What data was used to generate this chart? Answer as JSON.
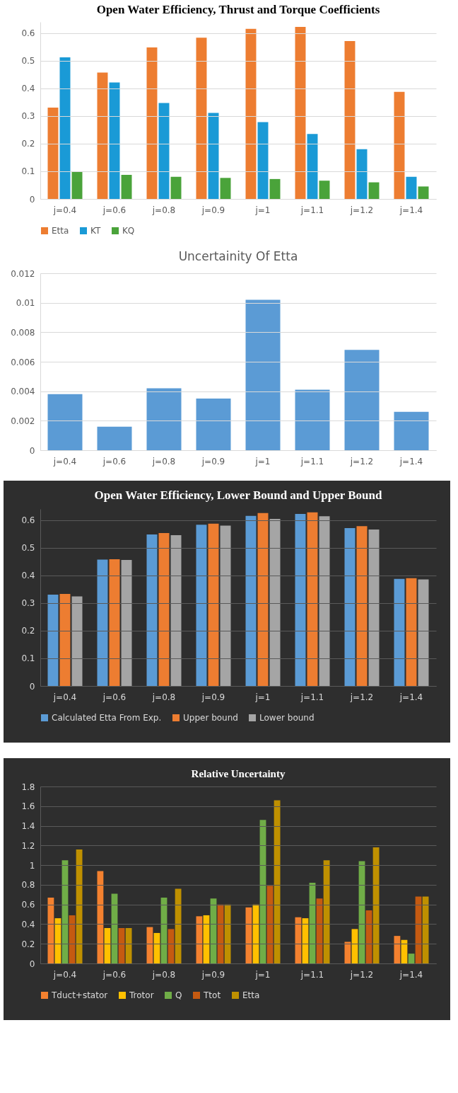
{
  "chart_data": [
    {
      "type": "bar",
      "title": "Open Water Efficiency, Thrust and Torque Coefficients",
      "categories": [
        "j=0.4",
        "j=0.6",
        "j=0.8",
        "j=0.9",
        "j=1",
        "j=1.1",
        "j=1.2",
        "j=1.4"
      ],
      "series": [
        {
          "name": "Etta",
          "color": "#ed7d31",
          "values": [
            0.33,
            0.457,
            0.548,
            0.583,
            0.615,
            0.622,
            0.571,
            0.387
          ]
        },
        {
          "name": "KT",
          "color": "#1a9ad6",
          "values": [
            0.512,
            0.421,
            0.347,
            0.311,
            0.278,
            0.235,
            0.18,
            0.08
          ]
        },
        {
          "name": "KQ",
          "color": "#4aa33a",
          "values": [
            0.099,
            0.087,
            0.08,
            0.076,
            0.072,
            0.066,
            0.06,
            0.045
          ]
        }
      ],
      "ylim": [
        0,
        0.64
      ],
      "yticks": [
        0,
        0.1,
        0.2,
        0.3,
        0.4,
        0.5,
        0.6
      ],
      "grid": "y",
      "legend": "bottom"
    },
    {
      "type": "bar",
      "title": "Uncertainity Of Etta",
      "categories": [
        "j=0.4",
        "j=0.6",
        "j=0.8",
        "j=0.9",
        "j=1",
        "j=1.1",
        "j=1.2",
        "j=1.4"
      ],
      "series": [
        {
          "color": "#5b9bd5",
          "values": [
            0.0038,
            0.0016,
            0.0042,
            0.0035,
            0.0102,
            0.0041,
            0.0068,
            0.0026
          ]
        }
      ],
      "ylim": [
        0,
        0.012
      ],
      "yticks": [
        0,
        0.002,
        0.004,
        0.006,
        0.008,
        0.01,
        0.012
      ],
      "grid": "y"
    },
    {
      "type": "bar",
      "title": "Open Water Efficiency, Lower Bound and Upper Bound",
      "categories": [
        "j=0.4",
        "j=0.6",
        "j=0.8",
        "j=0.9",
        "j=1",
        "j=1.1",
        "j=1.2",
        "j=1.4"
      ],
      "series": [
        {
          "name": "Calculated Etta From Exp.",
          "color": "#5b9bd5",
          "values": [
            0.33,
            0.457,
            0.548,
            0.583,
            0.615,
            0.622,
            0.571,
            0.387
          ]
        },
        {
          "name": "Upper bound",
          "color": "#ed7d31",
          "values": [
            0.333,
            0.458,
            0.553,
            0.587,
            0.625,
            0.628,
            0.578,
            0.39
          ]
        },
        {
          "name": "Lower bound",
          "color": "#a5a5a5",
          "values": [
            0.324,
            0.456,
            0.545,
            0.58,
            0.604,
            0.614,
            0.566,
            0.385
          ]
        }
      ],
      "ylim": [
        0,
        0.64
      ],
      "yticks": [
        0,
        0.1,
        0.2,
        0.3,
        0.4,
        0.5,
        0.6
      ],
      "grid": "y",
      "legend": "bottom"
    },
    {
      "type": "bar",
      "title": "Relative Uncertainty",
      "categories": [
        "j=0.4",
        "j=0.6",
        "j=0.8",
        "j=0.9",
        "j=1",
        "j=1.1",
        "j=1.2",
        "j=1.4"
      ],
      "series": [
        {
          "name": "Tduct+stator",
          "color": "#f4812f",
          "values": [
            0.67,
            0.94,
            0.37,
            0.48,
            0.57,
            0.47,
            0.22,
            0.28
          ]
        },
        {
          "name": "Trotor",
          "color": "#ffc000",
          "values": [
            0.46,
            0.36,
            0.31,
            0.49,
            0.6,
            0.46,
            0.35,
            0.24
          ]
        },
        {
          "name": "Q",
          "color": "#70ad47",
          "values": [
            1.05,
            0.71,
            0.67,
            0.66,
            1.46,
            0.82,
            1.04,
            0.1
          ]
        },
        {
          "name": "Ttot",
          "color": "#c55a11",
          "values": [
            0.49,
            0.36,
            0.35,
            0.6,
            0.79,
            0.66,
            0.54,
            0.68
          ]
        },
        {
          "name": "Etta",
          "color": "#bf9000",
          "values": [
            1.16,
            0.36,
            0.76,
            0.6,
            1.66,
            1.05,
            1.18,
            0.68
          ]
        }
      ],
      "ylim": [
        0,
        1.8
      ],
      "yticks": [
        0,
        0.2,
        0.4,
        0.6,
        0.8,
        1,
        1.2,
        1.4,
        1.6,
        1.8
      ],
      "grid": "y",
      "legend": "bottom"
    }
  ]
}
